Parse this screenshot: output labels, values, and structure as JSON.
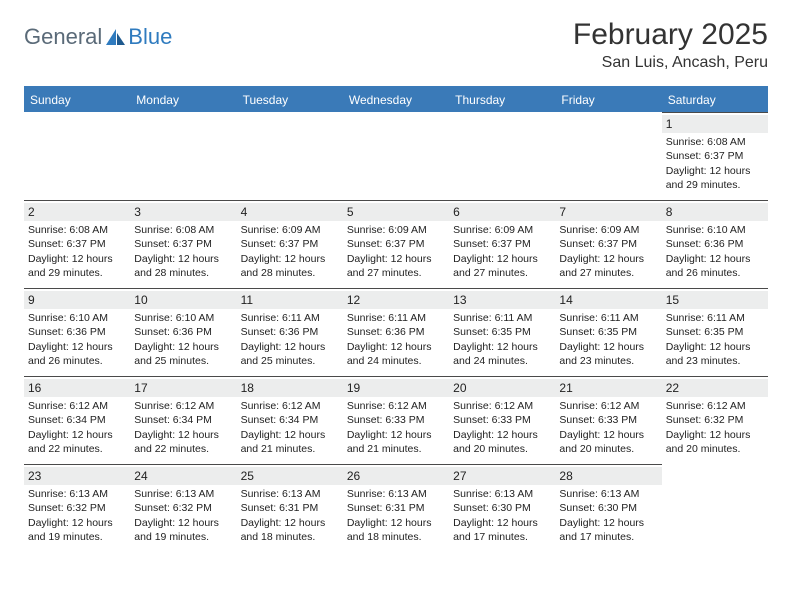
{
  "logo": {
    "text1": "General",
    "text2": "Blue"
  },
  "title": "February 2025",
  "location": "San Luis, Ancash, Peru",
  "colors": {
    "header_bg": "#3a7ab8",
    "header_text": "#ffffff",
    "daynum_bg": "#eceded",
    "cell_border": "#4a4a4a",
    "logo_general": "#5a6a78",
    "logo_blue": "#2f7bbf"
  },
  "weekdays": [
    "Sunday",
    "Monday",
    "Tuesday",
    "Wednesday",
    "Thursday",
    "Friday",
    "Saturday"
  ],
  "leading_blanks": 6,
  "days": [
    {
      "n": 1,
      "sunrise": "6:08 AM",
      "sunset": "6:37 PM",
      "daylight": "12 hours and 29 minutes."
    },
    {
      "n": 2,
      "sunrise": "6:08 AM",
      "sunset": "6:37 PM",
      "daylight": "12 hours and 29 minutes."
    },
    {
      "n": 3,
      "sunrise": "6:08 AM",
      "sunset": "6:37 PM",
      "daylight": "12 hours and 28 minutes."
    },
    {
      "n": 4,
      "sunrise": "6:09 AM",
      "sunset": "6:37 PM",
      "daylight": "12 hours and 28 minutes."
    },
    {
      "n": 5,
      "sunrise": "6:09 AM",
      "sunset": "6:37 PM",
      "daylight": "12 hours and 27 minutes."
    },
    {
      "n": 6,
      "sunrise": "6:09 AM",
      "sunset": "6:37 PM",
      "daylight": "12 hours and 27 minutes."
    },
    {
      "n": 7,
      "sunrise": "6:09 AM",
      "sunset": "6:37 PM",
      "daylight": "12 hours and 27 minutes."
    },
    {
      "n": 8,
      "sunrise": "6:10 AM",
      "sunset": "6:36 PM",
      "daylight": "12 hours and 26 minutes."
    },
    {
      "n": 9,
      "sunrise": "6:10 AM",
      "sunset": "6:36 PM",
      "daylight": "12 hours and 26 minutes."
    },
    {
      "n": 10,
      "sunrise": "6:10 AM",
      "sunset": "6:36 PM",
      "daylight": "12 hours and 25 minutes."
    },
    {
      "n": 11,
      "sunrise": "6:11 AM",
      "sunset": "6:36 PM",
      "daylight": "12 hours and 25 minutes."
    },
    {
      "n": 12,
      "sunrise": "6:11 AM",
      "sunset": "6:36 PM",
      "daylight": "12 hours and 24 minutes."
    },
    {
      "n": 13,
      "sunrise": "6:11 AM",
      "sunset": "6:35 PM",
      "daylight": "12 hours and 24 minutes."
    },
    {
      "n": 14,
      "sunrise": "6:11 AM",
      "sunset": "6:35 PM",
      "daylight": "12 hours and 23 minutes."
    },
    {
      "n": 15,
      "sunrise": "6:11 AM",
      "sunset": "6:35 PM",
      "daylight": "12 hours and 23 minutes."
    },
    {
      "n": 16,
      "sunrise": "6:12 AM",
      "sunset": "6:34 PM",
      "daylight": "12 hours and 22 minutes."
    },
    {
      "n": 17,
      "sunrise": "6:12 AM",
      "sunset": "6:34 PM",
      "daylight": "12 hours and 22 minutes."
    },
    {
      "n": 18,
      "sunrise": "6:12 AM",
      "sunset": "6:34 PM",
      "daylight": "12 hours and 21 minutes."
    },
    {
      "n": 19,
      "sunrise": "6:12 AM",
      "sunset": "6:33 PM",
      "daylight": "12 hours and 21 minutes."
    },
    {
      "n": 20,
      "sunrise": "6:12 AM",
      "sunset": "6:33 PM",
      "daylight": "12 hours and 20 minutes."
    },
    {
      "n": 21,
      "sunrise": "6:12 AM",
      "sunset": "6:33 PM",
      "daylight": "12 hours and 20 minutes."
    },
    {
      "n": 22,
      "sunrise": "6:12 AM",
      "sunset": "6:32 PM",
      "daylight": "12 hours and 20 minutes."
    },
    {
      "n": 23,
      "sunrise": "6:13 AM",
      "sunset": "6:32 PM",
      "daylight": "12 hours and 19 minutes."
    },
    {
      "n": 24,
      "sunrise": "6:13 AM",
      "sunset": "6:32 PM",
      "daylight": "12 hours and 19 minutes."
    },
    {
      "n": 25,
      "sunrise": "6:13 AM",
      "sunset": "6:31 PM",
      "daylight": "12 hours and 18 minutes."
    },
    {
      "n": 26,
      "sunrise": "6:13 AM",
      "sunset": "6:31 PM",
      "daylight": "12 hours and 18 minutes."
    },
    {
      "n": 27,
      "sunrise": "6:13 AM",
      "sunset": "6:30 PM",
      "daylight": "12 hours and 17 minutes."
    },
    {
      "n": 28,
      "sunrise": "6:13 AM",
      "sunset": "6:30 PM",
      "daylight": "12 hours and 17 minutes."
    }
  ],
  "labels": {
    "sunrise": "Sunrise:",
    "sunset": "Sunset:",
    "daylight": "Daylight:"
  }
}
